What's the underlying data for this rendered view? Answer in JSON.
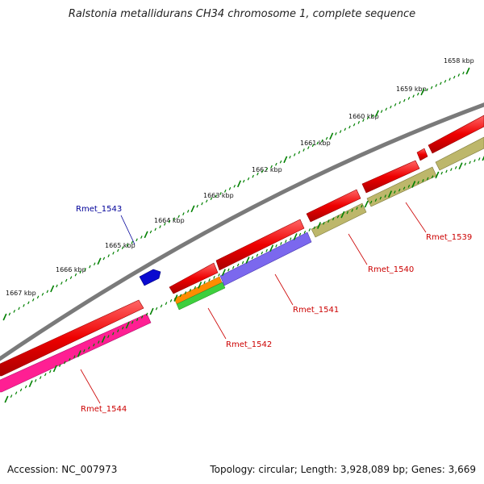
{
  "title": "Ralstonia metallidurans CH34 chromosome 1, complete sequence",
  "footer": {
    "accession": "Accession: NC_007973",
    "summary": "Topology: circular; Length: 3,928,089 bp; Genes: 3,669"
  },
  "scale_labels": [
    "1658 kbp",
    "1659 kbp",
    "1660 kbp",
    "1661 kbp",
    "1662 kbp",
    "1663 kbp",
    "1664 kbp",
    "1665 kbp",
    "1666 kbp",
    "1667 kbp"
  ],
  "gene_labels": {
    "rmet_1539": "Rmet_1539",
    "rmet_1540": "Rmet_1540",
    "rmet_1541": "Rmet_1541",
    "rmet_1542": "Rmet_1542",
    "rmet_1543": "Rmet_1543",
    "rmet_1544": "Rmet_1544"
  },
  "colors": {
    "backbone": "#808080",
    "cds_forward": "#e60000",
    "cds_reverse": "#ff1493",
    "gene_blast": "#7b68ee",
    "olive_feature": "#bdb76b",
    "orange_feature": "#ff8c00",
    "green_feature": "#32cd32",
    "blue_feature": "#0000cc",
    "tick": "#008000",
    "label_red": "#cc0000",
    "label_blue": "#000099"
  }
}
